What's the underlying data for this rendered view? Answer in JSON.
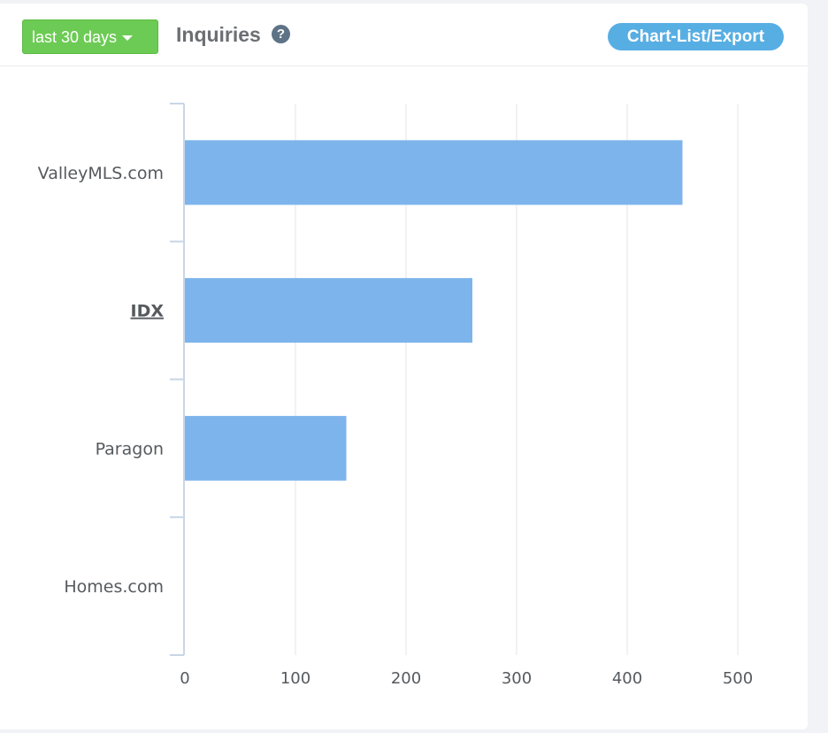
{
  "header": {
    "range_label": "last 30 days",
    "title": "Inquiries",
    "help_glyph": "?",
    "export_label": "Chart-List/Export"
  },
  "icons": {
    "caret": "caret-down-icon",
    "help": "question-circle-icon"
  },
  "colors": {
    "bar": "#7db4ec",
    "range_button": "#6ccb54",
    "export_button": "#57aee3"
  },
  "chart_data": {
    "type": "bar",
    "orientation": "horizontal",
    "categories": [
      "ValleyMLS.com",
      "IDX",
      "Paragon",
      "Homes.com"
    ],
    "values": [
      450,
      260,
      146,
      0
    ],
    "xticks": [
      "0",
      "100",
      "200",
      "300",
      "400",
      "500"
    ],
    "xlim": [
      0,
      500
    ],
    "grid": true,
    "legend": "none",
    "linked_categories": [
      "IDX"
    ]
  }
}
